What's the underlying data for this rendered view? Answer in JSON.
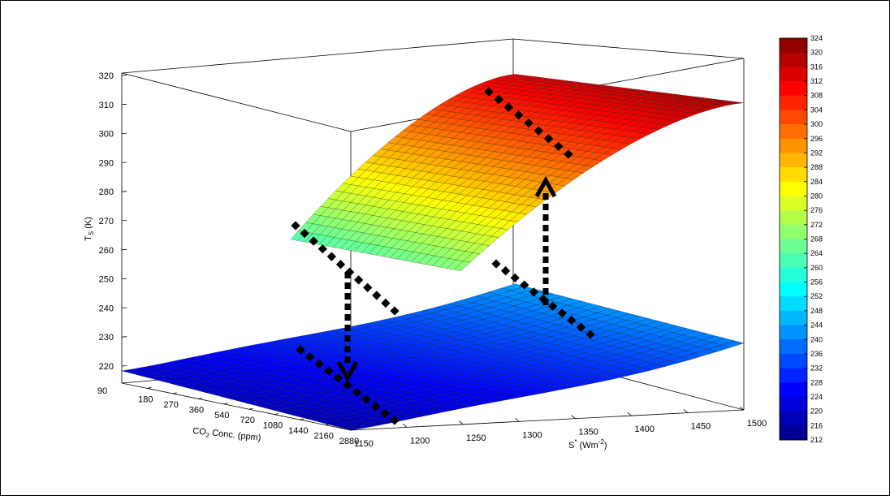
{
  "chart_data": {
    "type": "surface3d",
    "title": "",
    "zlabel": {
      "main": "T",
      "sub": "S",
      "suffix": " (K)"
    },
    "xlabel": {
      "pre": "CO",
      "sub": "2",
      "post": " Conc. (ppm)"
    },
    "ylabel": {
      "pre": "S",
      "sup": "*",
      "mid": " (Wm",
      "sup2": "-2",
      "post": ")"
    },
    "co2_ticks": [
      "90",
      "180",
      "270",
      "360",
      "540",
      "720",
      "1080",
      "1440",
      "2160",
      "2880"
    ],
    "s_ticks": [
      "1150",
      "1200",
      "1250",
      "1300",
      "1350",
      "1400",
      "1450",
      "1500"
    ],
    "z_ticks": [
      "220",
      "230",
      "240",
      "250",
      "260",
      "270",
      "280",
      "290",
      "300",
      "310",
      "320"
    ],
    "zlim": [
      215,
      322
    ],
    "colorbar": {
      "labels": [
        "324",
        "320",
        "316",
        "312",
        "308",
        "304",
        "300",
        "296",
        "292",
        "288",
        "284",
        "280",
        "276",
        "272",
        "268",
        "264",
        "260",
        "256",
        "252",
        "248",
        "244",
        "240",
        "236",
        "232",
        "228",
        "224",
        "220",
        "216",
        "212"
      ]
    },
    "cold_branch": {
      "description_values": [
        {
          "co2": "90",
          "s": "1150",
          "t": 218
        },
        {
          "co2": "2880",
          "s": "1150",
          "t": 222
        },
        {
          "co2": "90",
          "s": "1500",
          "t": 238
        },
        {
          "co2": "2880",
          "s": "1500",
          "t": 242
        }
      ]
    },
    "warm_branch": {
      "description_values": [
        {
          "co2": "90",
          "s": "1250",
          "t": 268
        },
        {
          "co2": "2880",
          "s": "1300",
          "t": 252
        },
        {
          "co2": "90",
          "s": "1500",
          "t": 318
        },
        {
          "co2": "2880",
          "s": "1500",
          "t": 312
        }
      ]
    }
  }
}
